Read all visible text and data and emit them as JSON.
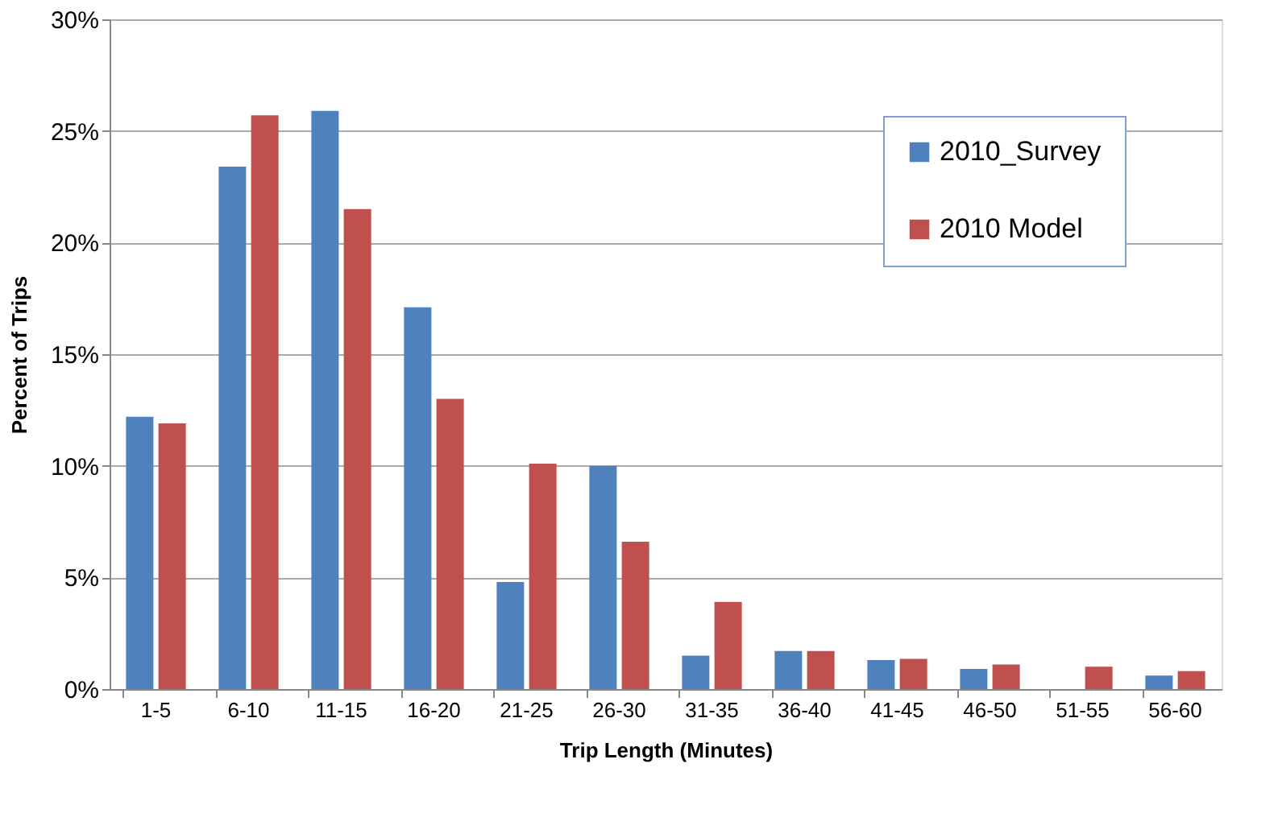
{
  "chart_data": {
    "type": "bar",
    "xlabel": "Trip Length (Minutes)",
    "ylabel": "Percent of Trips",
    "categories": [
      "1-5",
      "6-10",
      "11-15",
      "16-20",
      "21-25",
      "26-30",
      "31-35",
      "36-40",
      "41-45",
      "46-50",
      "51-55",
      "56-60"
    ],
    "series": [
      {
        "name": "2010_Survey",
        "color": "#4f81bd",
        "values": [
          12.2,
          23.4,
          25.9,
          17.1,
          4.8,
          10.0,
          1.5,
          1.7,
          1.3,
          0.9,
          0,
          0.6
        ]
      },
      {
        "name": "2010 Model",
        "color": "#c0504d",
        "values": [
          11.9,
          25.7,
          21.5,
          13.0,
          10.1,
          6.6,
          3.9,
          1.7,
          1.35,
          1.1,
          1.0,
          0.8
        ]
      }
    ],
    "ylim": [
      0,
      30
    ],
    "yticks": [
      {
        "value": 0,
        "label": "0%"
      },
      {
        "value": 5,
        "label": "5%"
      },
      {
        "value": 10,
        "label": "10%"
      },
      {
        "value": 15,
        "label": "15%"
      },
      {
        "value": 20,
        "label": "20%"
      },
      {
        "value": 25,
        "label": "25%"
      },
      {
        "value": 30,
        "label": "30%"
      }
    ],
    "grid": "y",
    "legend": "top right"
  }
}
